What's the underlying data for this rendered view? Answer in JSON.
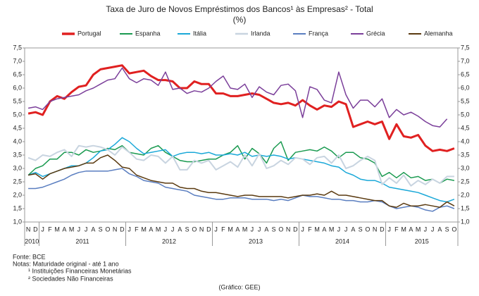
{
  "chart_data": {
    "type": "line",
    "title": "Taxa de Juro de Novos Empréstimos dos Bancos¹ às Empresas² - Total",
    "subtitle": "(%)",
    "categories": [
      "N",
      "D",
      "J",
      "F",
      "M",
      "A",
      "M",
      "J",
      "J",
      "A",
      "S",
      "O",
      "N",
      "D",
      "J",
      "F",
      "M",
      "A",
      "M",
      "J",
      "J",
      "A",
      "S",
      "O",
      "N",
      "D",
      "J",
      "F",
      "M",
      "A",
      "M",
      "J",
      "J",
      "A",
      "S",
      "O",
      "N",
      "D",
      "J",
      "F",
      "M",
      "A",
      "M",
      "J",
      "J",
      "A",
      "S",
      "O",
      "N",
      "D",
      "J",
      "F",
      "M",
      "A",
      "M",
      "J",
      "J",
      "A",
      "S",
      "O"
    ],
    "years": [
      "2010",
      "2011",
      "2012",
      "2013",
      "2014",
      "2015"
    ],
    "ylim": [
      1.0,
      7.5
    ],
    "yticks": [
      {
        "value": 1.0,
        "label": "1,0"
      },
      {
        "value": 1.5,
        "label": "1,5"
      },
      {
        "value": 2.0,
        "label": "2,0"
      },
      {
        "value": 2.5,
        "label": "2,5"
      },
      {
        "value": 3.0,
        "label": "3,0"
      },
      {
        "value": 3.5,
        "label": "3,5"
      },
      {
        "value": 4.0,
        "label": "4,0"
      },
      {
        "value": 4.5,
        "label": "4,5"
      },
      {
        "value": 5.0,
        "label": "5,0"
      },
      {
        "value": 5.5,
        "label": "5,5"
      },
      {
        "value": 6.0,
        "label": "6,0"
      },
      {
        "value": 6.5,
        "label": "6,5"
      },
      {
        "value": 7.0,
        "label": "7,0"
      },
      {
        "value": 7.5,
        "label": "7,5"
      }
    ],
    "grid": false,
    "series": [
      {
        "name": "Portugal",
        "color": "#e02020",
        "width": 3,
        "values": [
          5.05,
          5.1,
          5.0,
          5.5,
          5.7,
          5.6,
          5.85,
          6.05,
          6.1,
          6.5,
          6.7,
          6.75,
          6.8,
          6.85,
          6.55,
          6.6,
          6.65,
          6.45,
          6.3,
          6.3,
          6.25,
          6.0,
          6.0,
          6.25,
          6.15,
          6.15,
          5.8,
          5.8,
          5.7,
          5.7,
          5.75,
          5.8,
          5.75,
          5.6,
          5.45,
          5.4,
          5.45,
          5.35,
          5.55,
          5.35,
          5.2,
          5.35,
          5.3,
          5.5,
          5.4,
          4.55,
          4.65,
          4.75,
          4.65,
          4.75,
          4.1,
          4.65,
          4.2,
          4.15,
          4.25,
          3.85,
          3.65,
          3.7,
          3.65,
          3.75
        ]
      },
      {
        "name": "Espanha",
        "color": "#1a9a50",
        "width": 1.5,
        "values": [
          2.75,
          3.0,
          3.1,
          3.35,
          3.35,
          3.6,
          3.6,
          3.5,
          3.7,
          3.6,
          3.65,
          3.75,
          3.7,
          3.85,
          3.6,
          3.55,
          3.5,
          3.75,
          3.85,
          3.6,
          3.45,
          3.3,
          3.25,
          3.25,
          3.3,
          3.35,
          3.35,
          3.5,
          3.6,
          3.85,
          3.35,
          3.75,
          3.55,
          3.2,
          3.75,
          4.0,
          3.3,
          3.6,
          3.65,
          3.7,
          3.65,
          3.8,
          3.65,
          3.4,
          3.6,
          3.6,
          3.4,
          3.35,
          3.2,
          2.7,
          2.85,
          2.65,
          2.85,
          2.65,
          2.7,
          2.55,
          2.6,
          2.45,
          2.6,
          2.55
        ]
      },
      {
        "name": "Itália",
        "color": "#1aa8d8",
        "width": 1.5,
        "values": [
          2.75,
          2.85,
          2.7,
          2.8,
          2.9,
          3.0,
          3.1,
          3.1,
          3.2,
          3.4,
          3.65,
          3.7,
          3.9,
          4.15,
          4.0,
          3.75,
          3.55,
          3.6,
          3.65,
          3.7,
          3.45,
          3.55,
          3.6,
          3.6,
          3.55,
          3.6,
          3.5,
          3.5,
          3.55,
          3.5,
          3.6,
          3.45,
          3.5,
          3.45,
          3.5,
          3.45,
          3.35,
          3.4,
          3.35,
          3.3,
          3.25,
          3.2,
          3.1,
          3.05,
          2.85,
          2.75,
          2.6,
          2.55,
          2.55,
          2.45,
          2.3,
          2.25,
          2.2,
          2.15,
          2.1,
          2.0,
          1.9,
          1.8,
          1.75,
          1.85
        ]
      },
      {
        "name": "Irlanda",
        "color": "#c8d4e0",
        "width": 2,
        "values": [
          3.4,
          3.3,
          3.5,
          3.45,
          3.6,
          3.7,
          3.45,
          3.85,
          3.8,
          3.85,
          3.8,
          3.7,
          3.5,
          3.8,
          3.6,
          3.35,
          3.3,
          3.5,
          3.45,
          3.2,
          3.45,
          2.95,
          2.95,
          3.3,
          3.2,
          3.3,
          2.95,
          3.1,
          3.25,
          3.05,
          3.5,
          3.1,
          3.55,
          3.0,
          3.1,
          3.3,
          3.15,
          3.4,
          3.35,
          3.15,
          3.4,
          3.45,
          3.2,
          3.5,
          3.0,
          3.1,
          3.3,
          3.45,
          3.3,
          2.4,
          2.65,
          2.45,
          2.75,
          2.35,
          2.55,
          2.4,
          2.6,
          2.45,
          2.7,
          2.7
        ]
      },
      {
        "name": "França",
        "color": "#5a7ec0",
        "width": 1.5,
        "values": [
          2.25,
          2.25,
          2.3,
          2.4,
          2.5,
          2.6,
          2.75,
          2.85,
          2.9,
          2.9,
          2.9,
          2.9,
          2.95,
          3.0,
          2.8,
          2.7,
          2.55,
          2.5,
          2.45,
          2.3,
          2.25,
          2.2,
          2.15,
          2.0,
          1.95,
          1.9,
          1.85,
          1.85,
          1.9,
          1.9,
          1.9,
          1.85,
          1.85,
          1.85,
          1.8,
          1.85,
          1.8,
          1.9,
          2.0,
          1.95,
          1.95,
          1.9,
          1.85,
          1.85,
          1.8,
          1.8,
          1.75,
          1.75,
          1.8,
          1.75,
          1.6,
          1.5,
          1.55,
          1.6,
          1.55,
          1.45,
          1.4,
          1.55,
          1.6,
          1.5
        ]
      },
      {
        "name": "Grécia",
        "color": "#7b3f9a",
        "width": 1.5,
        "values": [
          5.25,
          5.3,
          5.2,
          5.5,
          5.6,
          5.65,
          5.7,
          5.75,
          5.9,
          6.0,
          6.15,
          6.3,
          6.35,
          6.75,
          6.35,
          6.2,
          6.35,
          6.3,
          6.1,
          6.6,
          5.95,
          6.0,
          5.8,
          5.9,
          5.85,
          6.0,
          6.25,
          6.45,
          6.0,
          5.95,
          6.15,
          5.65,
          6.05,
          5.85,
          5.75,
          6.1,
          6.15,
          5.9,
          4.9,
          6.05,
          5.95,
          5.55,
          5.45,
          6.6,
          5.75,
          5.25,
          5.55,
          5.55,
          5.3,
          5.6,
          4.9,
          5.2,
          5.0,
          5.1,
          4.95,
          4.75,
          4.6,
          4.55,
          4.85,
          null
        ]
      },
      {
        "name": "Alemanha",
        "color": "#5a3a10",
        "width": 1.5,
        "values": [
          2.75,
          2.8,
          2.6,
          2.8,
          2.9,
          3.0,
          3.05,
          3.1,
          3.2,
          3.2,
          3.4,
          3.5,
          3.3,
          3.05,
          3.0,
          2.75,
          2.65,
          2.55,
          2.5,
          2.45,
          2.45,
          2.3,
          2.25,
          2.25,
          2.15,
          2.1,
          2.1,
          2.05,
          2.0,
          1.95,
          2.0,
          2.0,
          1.95,
          1.95,
          1.95,
          1.95,
          1.9,
          1.95,
          2.0,
          2.0,
          2.05,
          2.0,
          2.15,
          2.0,
          2.0,
          1.95,
          1.9,
          1.85,
          1.8,
          1.8,
          1.6,
          1.55,
          1.7,
          1.6,
          1.6,
          1.65,
          1.6,
          1.55,
          1.75,
          1.6
        ]
      }
    ]
  },
  "notes": [
    "Fonte: BCE",
    "Notas: Maturidade original - até 1 ano",
    "¹ Instituições Financeiras Monetárias",
    "² Sociedades Não Financeiras"
  ],
  "credit": "(Gráfico: GEE)"
}
